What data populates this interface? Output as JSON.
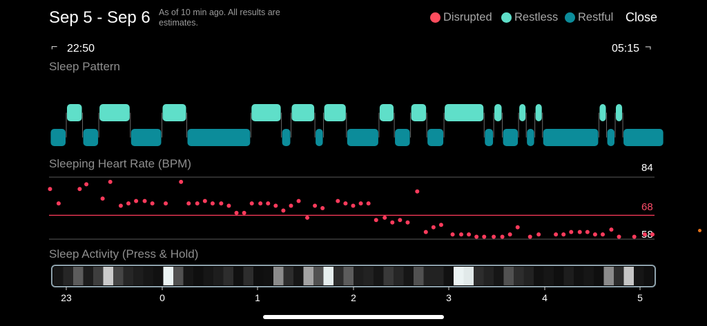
{
  "header": {
    "title": "Sep 5 - Sep 6",
    "subtitle": "As of 10 min ago. All results are estimates.",
    "close_label": "Close"
  },
  "legend": [
    {
      "label": "Disrupted",
      "color": "#ff4d5e"
    },
    {
      "label": "Restless",
      "color": "#5fdfc9"
    },
    {
      "label": "Restful",
      "color": "#0c8c9a"
    }
  ],
  "time_range": {
    "start": "22:50",
    "end": "05:15"
  },
  "sections": {
    "pattern": "Sleep Pattern",
    "heart_rate": "Sleeping Heart Rate (BPM)",
    "activity": "Sleep Activity (Press & Hold)"
  },
  "heart_rate_lines": {
    "max": "84",
    "avg": "68",
    "min": "58"
  },
  "x_ticks": [
    "23",
    "0",
    "1",
    "2",
    "3",
    "4",
    "5"
  ],
  "chart_data": [
    {
      "type": "timeline",
      "title": "Sleep Pattern",
      "states": [
        "Restless",
        "Restful"
      ],
      "x_range_hours": [
        22.833,
        29.25
      ],
      "segments": [
        {
          "state": "Restful",
          "start": 22.83,
          "end": 23.0
        },
        {
          "state": "Restless",
          "start": 23.0,
          "end": 23.17
        },
        {
          "state": "Restful",
          "start": 23.17,
          "end": 23.34
        },
        {
          "state": "Restless",
          "start": 23.34,
          "end": 23.67
        },
        {
          "state": "Restful",
          "start": 23.67,
          "end": 24.0
        },
        {
          "state": "Restless",
          "start": 24.0,
          "end": 24.26
        },
        {
          "state": "Restful",
          "start": 24.26,
          "end": 24.93
        },
        {
          "state": "Restless",
          "start": 24.93,
          "end": 25.25
        },
        {
          "state": "Restful",
          "start": 25.25,
          "end": 25.35
        },
        {
          "state": "Restless",
          "start": 25.35,
          "end": 25.6
        },
        {
          "state": "Restful",
          "start": 25.6,
          "end": 25.69
        },
        {
          "state": "Restless",
          "start": 25.69,
          "end": 25.93
        },
        {
          "state": "Restful",
          "start": 25.93,
          "end": 26.27
        },
        {
          "state": "Restless",
          "start": 26.27,
          "end": 26.43
        },
        {
          "state": "Restful",
          "start": 26.43,
          "end": 26.6
        },
        {
          "state": "Restless",
          "start": 26.6,
          "end": 26.77
        },
        {
          "state": "Restful",
          "start": 26.77,
          "end": 26.95
        },
        {
          "state": "Restless",
          "start": 26.95,
          "end": 27.37
        },
        {
          "state": "Restful",
          "start": 27.37,
          "end": 27.47
        },
        {
          "state": "Restless",
          "start": 27.47,
          "end": 27.56
        },
        {
          "state": "Restful",
          "start": 27.56,
          "end": 27.73
        },
        {
          "state": "Restless",
          "start": 27.73,
          "end": 27.81
        },
        {
          "state": "Restful",
          "start": 27.81,
          "end": 27.9
        },
        {
          "state": "Restless",
          "start": 27.9,
          "end": 27.98
        },
        {
          "state": "Restful",
          "start": 27.98,
          "end": 28.57
        },
        {
          "state": "Restless",
          "start": 28.57,
          "end": 28.65
        },
        {
          "state": "Restful",
          "start": 28.65,
          "end": 28.74
        },
        {
          "state": "Restless",
          "start": 28.74,
          "end": 28.82
        },
        {
          "state": "Restful",
          "start": 28.82,
          "end": 29.25
        }
      ]
    },
    {
      "type": "scatter",
      "title": "Sleeping Heart Rate (BPM)",
      "ylim": [
        58,
        84
      ],
      "reference_lines": [
        84,
        68,
        58
      ],
      "x": [
        22.83,
        22.92,
        23.14,
        23.21,
        23.38,
        23.46,
        23.57,
        23.65,
        23.73,
        23.82,
        23.9,
        24.04,
        24.2,
        24.28,
        24.37,
        24.45,
        24.53,
        24.62,
        24.7,
        24.78,
        24.86,
        24.94,
        25.03,
        25.11,
        25.19,
        25.27,
        25.35,
        25.43,
        25.52,
        25.6,
        25.68,
        25.84,
        25.92,
        26.0,
        26.08,
        26.16,
        26.24,
        26.33,
        26.41,
        26.49,
        26.57,
        26.67,
        26.76,
        26.84,
        26.92,
        27.04,
        27.13,
        27.21,
        27.29,
        27.37,
        27.47,
        27.56,
        27.64,
        27.72,
        27.85,
        27.94,
        28.12,
        28.2,
        28.28,
        28.37,
        28.45,
        28.53,
        28.61,
        28.7,
        28.78,
        28.94,
        29.05,
        29.13
      ],
      "y": [
        79,
        73,
        79,
        81,
        75,
        82,
        72,
        73,
        74,
        74,
        73,
        73,
        82,
        73,
        73,
        74,
        73,
        73,
        72,
        69,
        69,
        73,
        73,
        73,
        72,
        70,
        72,
        74,
        67,
        72,
        71,
        74,
        73,
        72,
        73,
        73,
        66,
        67,
        65,
        66,
        65,
        78,
        61,
        63,
        64,
        60,
        60,
        60,
        59,
        59,
        59,
        59,
        60,
        63,
        59,
        60,
        60,
        60,
        61,
        61,
        61,
        60,
        60,
        62,
        59,
        59,
        60,
        60
      ]
    },
    {
      "type": "heatmap",
      "title": "Sleep Activity (Press & Hold)",
      "x_ticks": [
        "23",
        "0",
        "1",
        "2",
        "3",
        "4",
        "5"
      ],
      "intensity": [
        0.05,
        0.12,
        0.35,
        0.08,
        0.22,
        0.82,
        0.25,
        0.12,
        0.08,
        0.05,
        0.03,
        0.99,
        0.3,
        0.05,
        0.02,
        0.05,
        0.08,
        0.15,
        0.03,
        0.15,
        0.02,
        0.03,
        0.55,
        0.15,
        0.05,
        0.65,
        0.3,
        0.97,
        0.15,
        0.35,
        0.08,
        0.1,
        0.05,
        0.2,
        0.12,
        0.05,
        0.3,
        0.1,
        0.1,
        0.03,
        0.99,
        0.95,
        0.15,
        0.1,
        0.05,
        0.3,
        0.15,
        0.1,
        0.03,
        0.05,
        0.02,
        0.08,
        0.03,
        0.05,
        0.02,
        0.55,
        0.15,
        0.8,
        0.05,
        0.02
      ]
    }
  ]
}
